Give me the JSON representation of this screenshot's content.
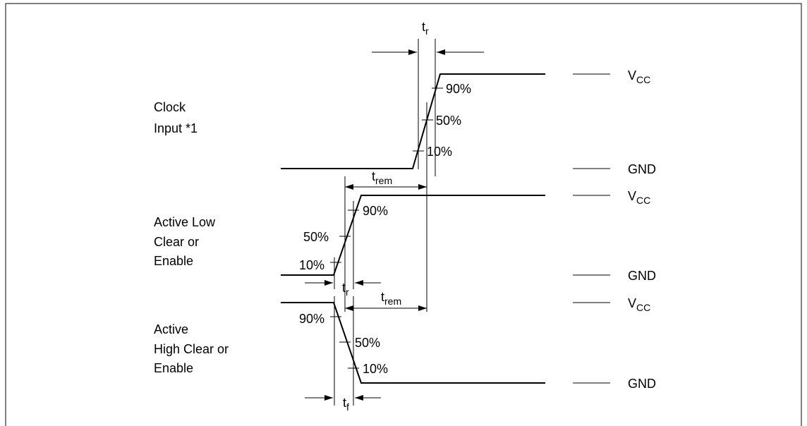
{
  "signals": [
    {
      "label": [
        "Clock",
        "Input *1"
      ],
      "percents": [
        "90%",
        "50%",
        "10%"
      ]
    },
    {
      "label": [
        "Active Low",
        "Clear or",
        "Enable"
      ],
      "percents": [
        "90%",
        "50%",
        "10%"
      ]
    },
    {
      "label": [
        "Active",
        "High Clear or",
        "Enable"
      ],
      "percents": [
        "90%",
        "50%",
        "10%"
      ]
    }
  ],
  "levels": [
    {
      "base": "V",
      "sub": "CC"
    },
    {
      "base": "GND"
    },
    {
      "base": "V",
      "sub": "CC"
    },
    {
      "base": "GND"
    },
    {
      "base": "V",
      "sub": "CC"
    },
    {
      "base": "GND"
    }
  ],
  "timings": [
    {
      "base": "t",
      "sub": "r"
    },
    {
      "base": "t",
      "sub": "rem"
    },
    {
      "base": "t",
      "sub": "r"
    },
    {
      "base": "t",
      "sub": "rem"
    },
    {
      "base": "t",
      "sub": "f"
    }
  ]
}
